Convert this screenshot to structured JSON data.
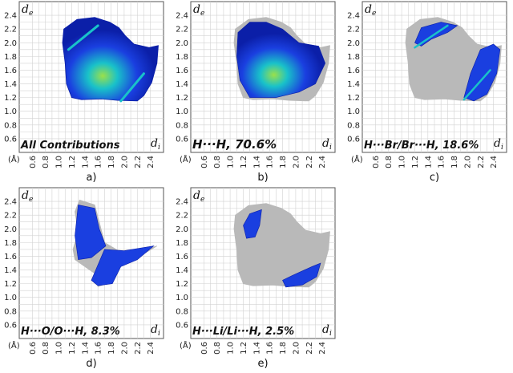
{
  "axis": {
    "y_label": "d",
    "y_label_sub": "e",
    "x_label": "d",
    "x_label_sub": "i",
    "unit": "(Å)",
    "y_ticks": [
      "2.4",
      "2.2",
      "2.0",
      "1.8",
      "1.6",
      "1.4",
      "1.2",
      "1.0",
      "0.8",
      "0.6"
    ],
    "x_ticks": [
      "0.6",
      "0.8",
      "1.0",
      "1.2",
      "1.4",
      "1.6",
      "1.8",
      "2.0",
      "2.2",
      "2.4"
    ]
  },
  "panels": [
    {
      "id": "a",
      "title": "All Contributions",
      "caption": "a)",
      "highlight": "full"
    },
    {
      "id": "b",
      "title": "H···H, 70.6%",
      "caption": "b)",
      "highlight": "hh"
    },
    {
      "id": "c",
      "title": "H···Br/Br···H, 18.6%",
      "caption": "c)",
      "highlight": "hbr"
    },
    {
      "id": "d",
      "title": "H···O/O···H, 8.3%",
      "caption": "d)",
      "highlight": "ho"
    },
    {
      "id": "e",
      "title": "H···Li/Li···H, 2.5%",
      "caption": "e)",
      "highlight": "hli"
    }
  ],
  "colors": {
    "background_fill": "#b9b9b9",
    "fingerprint": "#1a3fe0",
    "fingerprint_dark": "#0b1fa8",
    "fingerprint_mid": "#19c2c9",
    "fingerprint_hot": "#9be04a",
    "grid": "#d2d2d2",
    "frame": "#555555"
  }
}
